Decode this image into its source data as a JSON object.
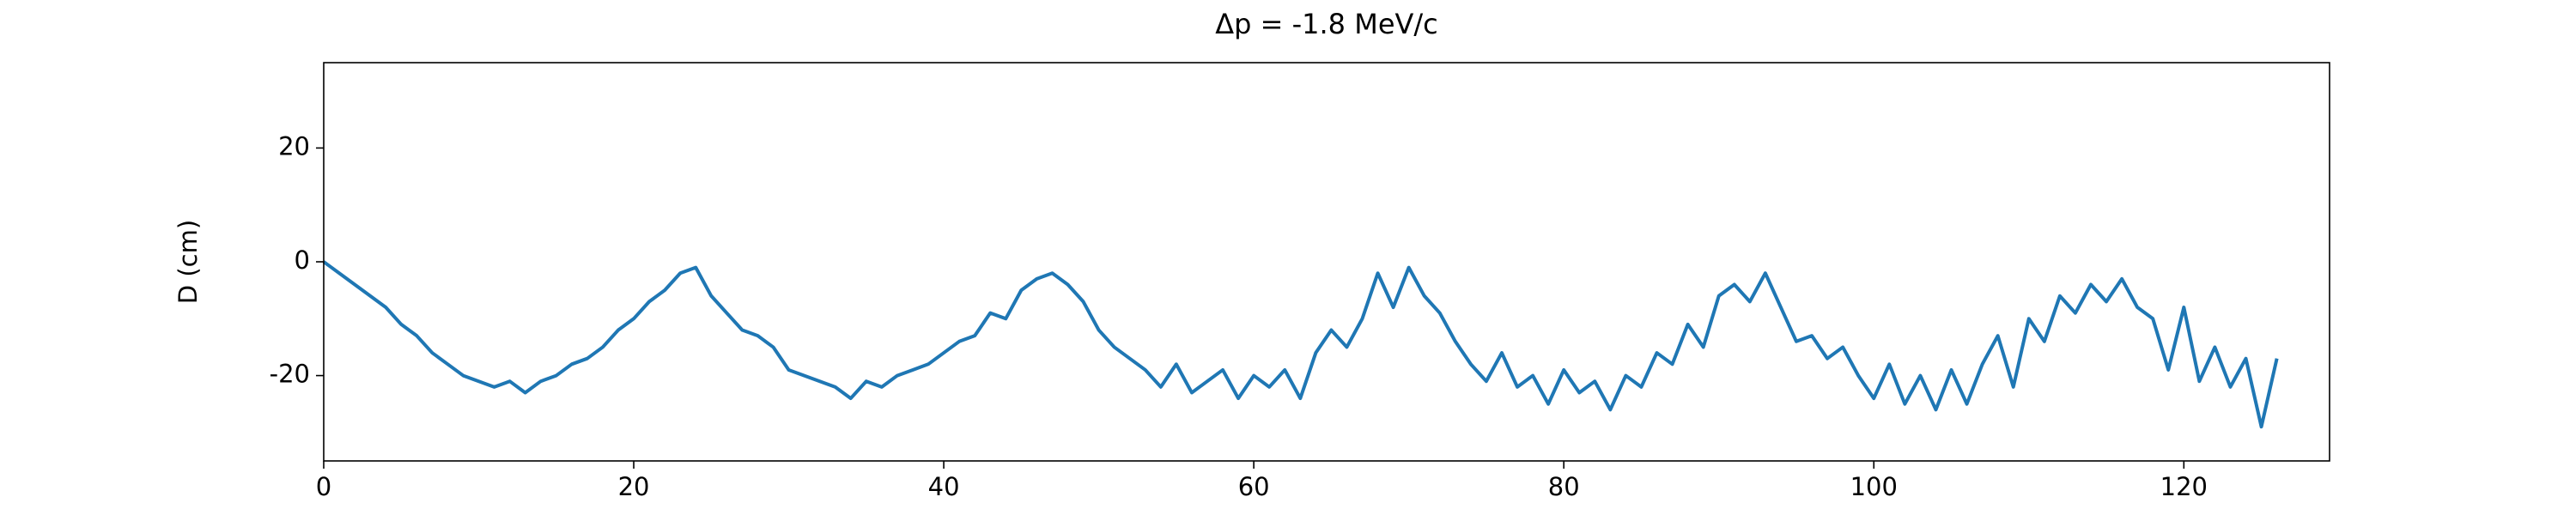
{
  "chart_data": {
    "type": "line",
    "title": "Δp = -1.8 MeV/c",
    "y_label": "D (cm)",
    "x": [
      0,
      1,
      2,
      3,
      4,
      5,
      6,
      7,
      8,
      9,
      10,
      11,
      12,
      13,
      14,
      15,
      16,
      17,
      18,
      19,
      20,
      21,
      22,
      23,
      24,
      25,
      26,
      27,
      28,
      29,
      30,
      31,
      32,
      33,
      34,
      35,
      36,
      37,
      38,
      39,
      40,
      41,
      42,
      43,
      44,
      45,
      46,
      47,
      48,
      49,
      50,
      51,
      52,
      53,
      54,
      55,
      56,
      57,
      58,
      59,
      60,
      61,
      62,
      63,
      64,
      65,
      66,
      67,
      68,
      69,
      70,
      71,
      72,
      73,
      74,
      75,
      76,
      77,
      78,
      79,
      80,
      81,
      82,
      83,
      84,
      85,
      86,
      87,
      88,
      89,
      90,
      91,
      92,
      93,
      94,
      95,
      96,
      97,
      98,
      99,
      100,
      101,
      102,
      103,
      104,
      105,
      106,
      107,
      108,
      109,
      110,
      111,
      112,
      113,
      114,
      115,
      116,
      117,
      118,
      119,
      120,
      121,
      122,
      123,
      124,
      125,
      126
    ],
    "series": [
      {
        "color": "#1f77b4",
        "values": [
          0,
          -2,
          -4,
          -6,
          -8,
          -11,
          -13,
          -16,
          -18,
          -20,
          -21,
          -22,
          -21,
          -23,
          -21,
          -20,
          -18,
          -17,
          -15,
          -12,
          -10,
          -7,
          -5,
          -2,
          -1,
          -6,
          -9,
          -12,
          -13,
          -15,
          -19,
          -20,
          -21,
          -22,
          -24,
          -21,
          -22,
          -20,
          -19,
          -18,
          -16,
          -14,
          -13,
          -9,
          -10,
          -5,
          -3,
          -2,
          -4,
          -7,
          -12,
          -15,
          -17,
          -19,
          -22,
          -18,
          -23,
          -21,
          -19,
          -24,
          -20,
          -22,
          -19,
          -24,
          -16,
          -12,
          -15,
          -10,
          -2,
          -8,
          -1,
          -6,
          -9,
          -14,
          -18,
          -21,
          -16,
          -22,
          -20,
          -25,
          -19,
          -23,
          -21,
          -26,
          -20,
          -22,
          -16,
          -18,
          -11,
          -15,
          -6,
          -4,
          -7,
          -2,
          -8,
          -14,
          -13,
          -17,
          -15,
          -20,
          -24,
          -18,
          -25,
          -20,
          -26,
          -19,
          -25,
          -18,
          -13,
          -22,
          -10,
          -14,
          -6,
          -9,
          -4,
          -7,
          -3,
          -8,
          -10,
          -19,
          -8,
          -21,
          -15,
          -22,
          -17,
          -29,
          -17
        ]
      }
    ],
    "xlim": [
      0,
      129.4
    ],
    "ylim": [
      -35,
      35
    ],
    "xticks": [
      0,
      20,
      40,
      60,
      80,
      100,
      120
    ],
    "yticks": [
      -20,
      0,
      20
    ]
  }
}
